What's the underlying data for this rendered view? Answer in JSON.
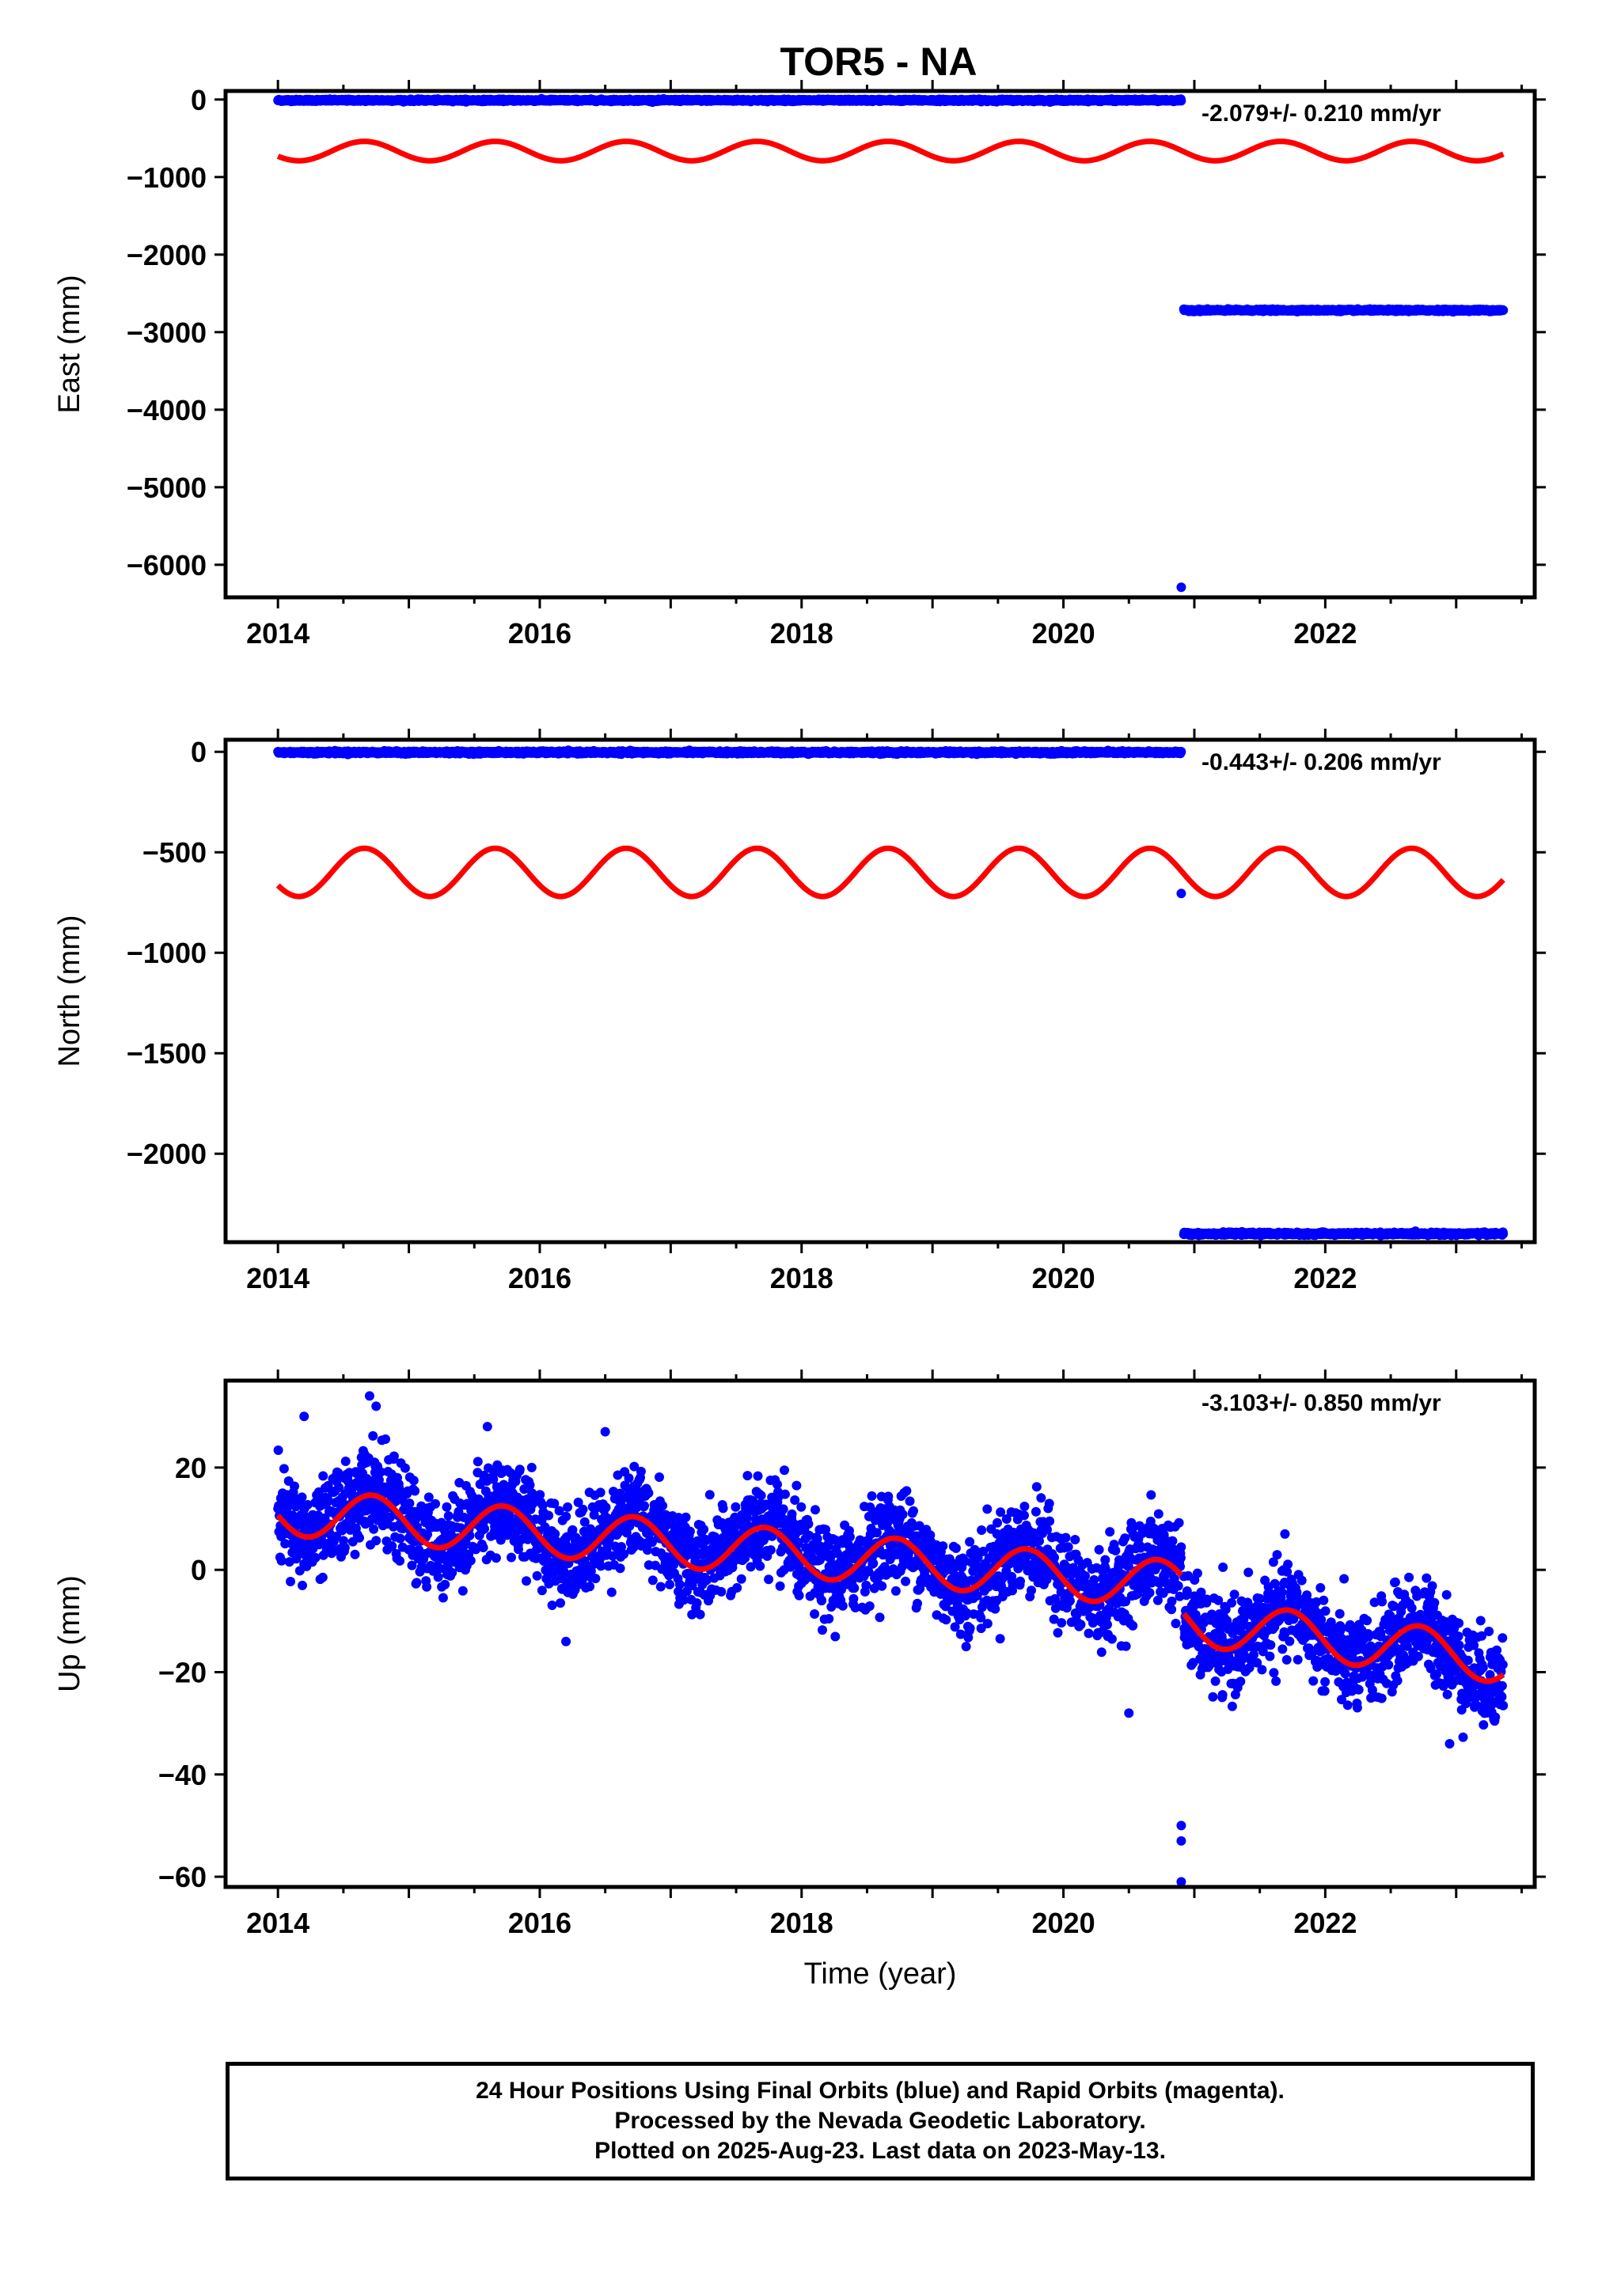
{
  "title": "TOR5 - NA",
  "footer": {
    "line1": "24 Hour Positions Using Final Orbits (blue) and Rapid Orbits (magenta).",
    "line2": "Processed by the Nevada Geodetic Laboratory.",
    "line3": "Plotted on 2025-Aug-23. Last data on 2023-May-13."
  },
  "colors": {
    "data_points": "#0000ff",
    "model_curve": "#ff0000",
    "frame": "#000000"
  },
  "chart_data": [
    {
      "type": "scatter",
      "ylabel": "East (mm)",
      "xlim": [
        2013.6,
        2023.6
      ],
      "ylim": [
        -6420,
        110
      ],
      "xticks": [
        2014,
        2016,
        2018,
        2020,
        2022
      ],
      "yticks": [
        0,
        -1000,
        -2000,
        -3000,
        -4000,
        -5000,
        -6000
      ],
      "rate_label": "-2.079+/- 0.210 mm/yr",
      "series": [
        {
          "kind": "points",
          "segments": [
            {
              "x_start": 2014.0,
              "x_end": 2020.9,
              "level": -10,
              "noise": 6
            },
            {
              "x_start": 2020.92,
              "x_end": 2023.36,
              "level": -2718,
              "noise": 6
            }
          ],
          "outliers": [
            {
              "x": 2020.9,
              "y": -6290
            }
          ]
        },
        {
          "kind": "model",
          "x_start": 2014.0,
          "x_end": 2023.36,
          "offset": -665,
          "slope": 0,
          "amplitude": 125,
          "phase_year": 2014.66
        }
      ]
    },
    {
      "type": "scatter",
      "ylabel": "North (mm)",
      "xlim": [
        2013.6,
        2023.6
      ],
      "ylim": [
        -2440,
        60
      ],
      "xticks": [
        2014,
        2016,
        2018,
        2020,
        2022
      ],
      "yticks": [
        0,
        -500,
        -1000,
        -1500,
        -2000
      ],
      "rate_label": "-0.443+/- 0.206 mm/yr",
      "series": [
        {
          "kind": "points",
          "segments": [
            {
              "x_start": 2014.0,
              "x_end": 2020.9,
              "level": -3,
              "noise": 3
            },
            {
              "x_start": 2020.92,
              "x_end": 2023.36,
              "level": -2398,
              "noise": 3
            }
          ],
          "outliers": [
            {
              "x": 2020.9,
              "y": -705
            }
          ]
        },
        {
          "kind": "model",
          "x_start": 2014.0,
          "x_end": 2023.36,
          "offset": -600,
          "slope": 0,
          "amplitude": 120,
          "phase_year": 2014.66
        }
      ]
    },
    {
      "type": "scatter",
      "xlabel": "Time (year)",
      "ylabel": "Up (mm)",
      "xlim": [
        2013.6,
        2023.6
      ],
      "ylim": [
        -62,
        37
      ],
      "xticks": [
        2014,
        2016,
        2018,
        2020,
        2022
      ],
      "yticks": [
        20,
        0,
        -20,
        -40,
        -60
      ],
      "rate_label": "-3.103+/- 0.850 mm/yr",
      "series": [
        {
          "kind": "points",
          "segments": [
            {
              "x_start": 2014.0,
              "x_end": 2020.9,
              "level": 12,
              "slope": -2.1,
              "amplitude": 4.6,
              "phase_year": 2014.72,
              "noise": 4.5
            },
            {
              "x_start": 2020.92,
              "x_end": 2023.36,
              "level": -10,
              "slope": -3.1,
              "amplitude": 4.6,
              "phase_year": 2014.72,
              "noise": 4.5
            }
          ],
          "outliers": [
            {
              "x": 2014.2,
              "y": 30
            },
            {
              "x": 2014.7,
              "y": 34
            },
            {
              "x": 2015.6,
              "y": 28
            },
            {
              "x": 2016.5,
              "y": 27
            },
            {
              "x": 2020.9,
              "y": -50
            },
            {
              "x": 2020.9,
              "y": -53
            },
            {
              "x": 2020.9,
              "y": -61
            },
            {
              "x": 2020.5,
              "y": -28
            },
            {
              "x": 2022.95,
              "y": -34
            },
            {
              "x": 2016.2,
              "y": -14
            },
            {
              "x": 2014.75,
              "y": 32
            }
          ]
        },
        {
          "kind": "model",
          "segments": [
            {
              "x_start": 2014.0,
              "x_end": 2020.9,
              "level": 11.5,
              "slope": -2.1
            },
            {
              "x_start": 2020.92,
              "x_end": 2023.36,
              "level": -10,
              "slope": -3.1
            }
          ],
          "amplitude": 4.6,
          "phase_year": 2014.72
        }
      ]
    }
  ]
}
